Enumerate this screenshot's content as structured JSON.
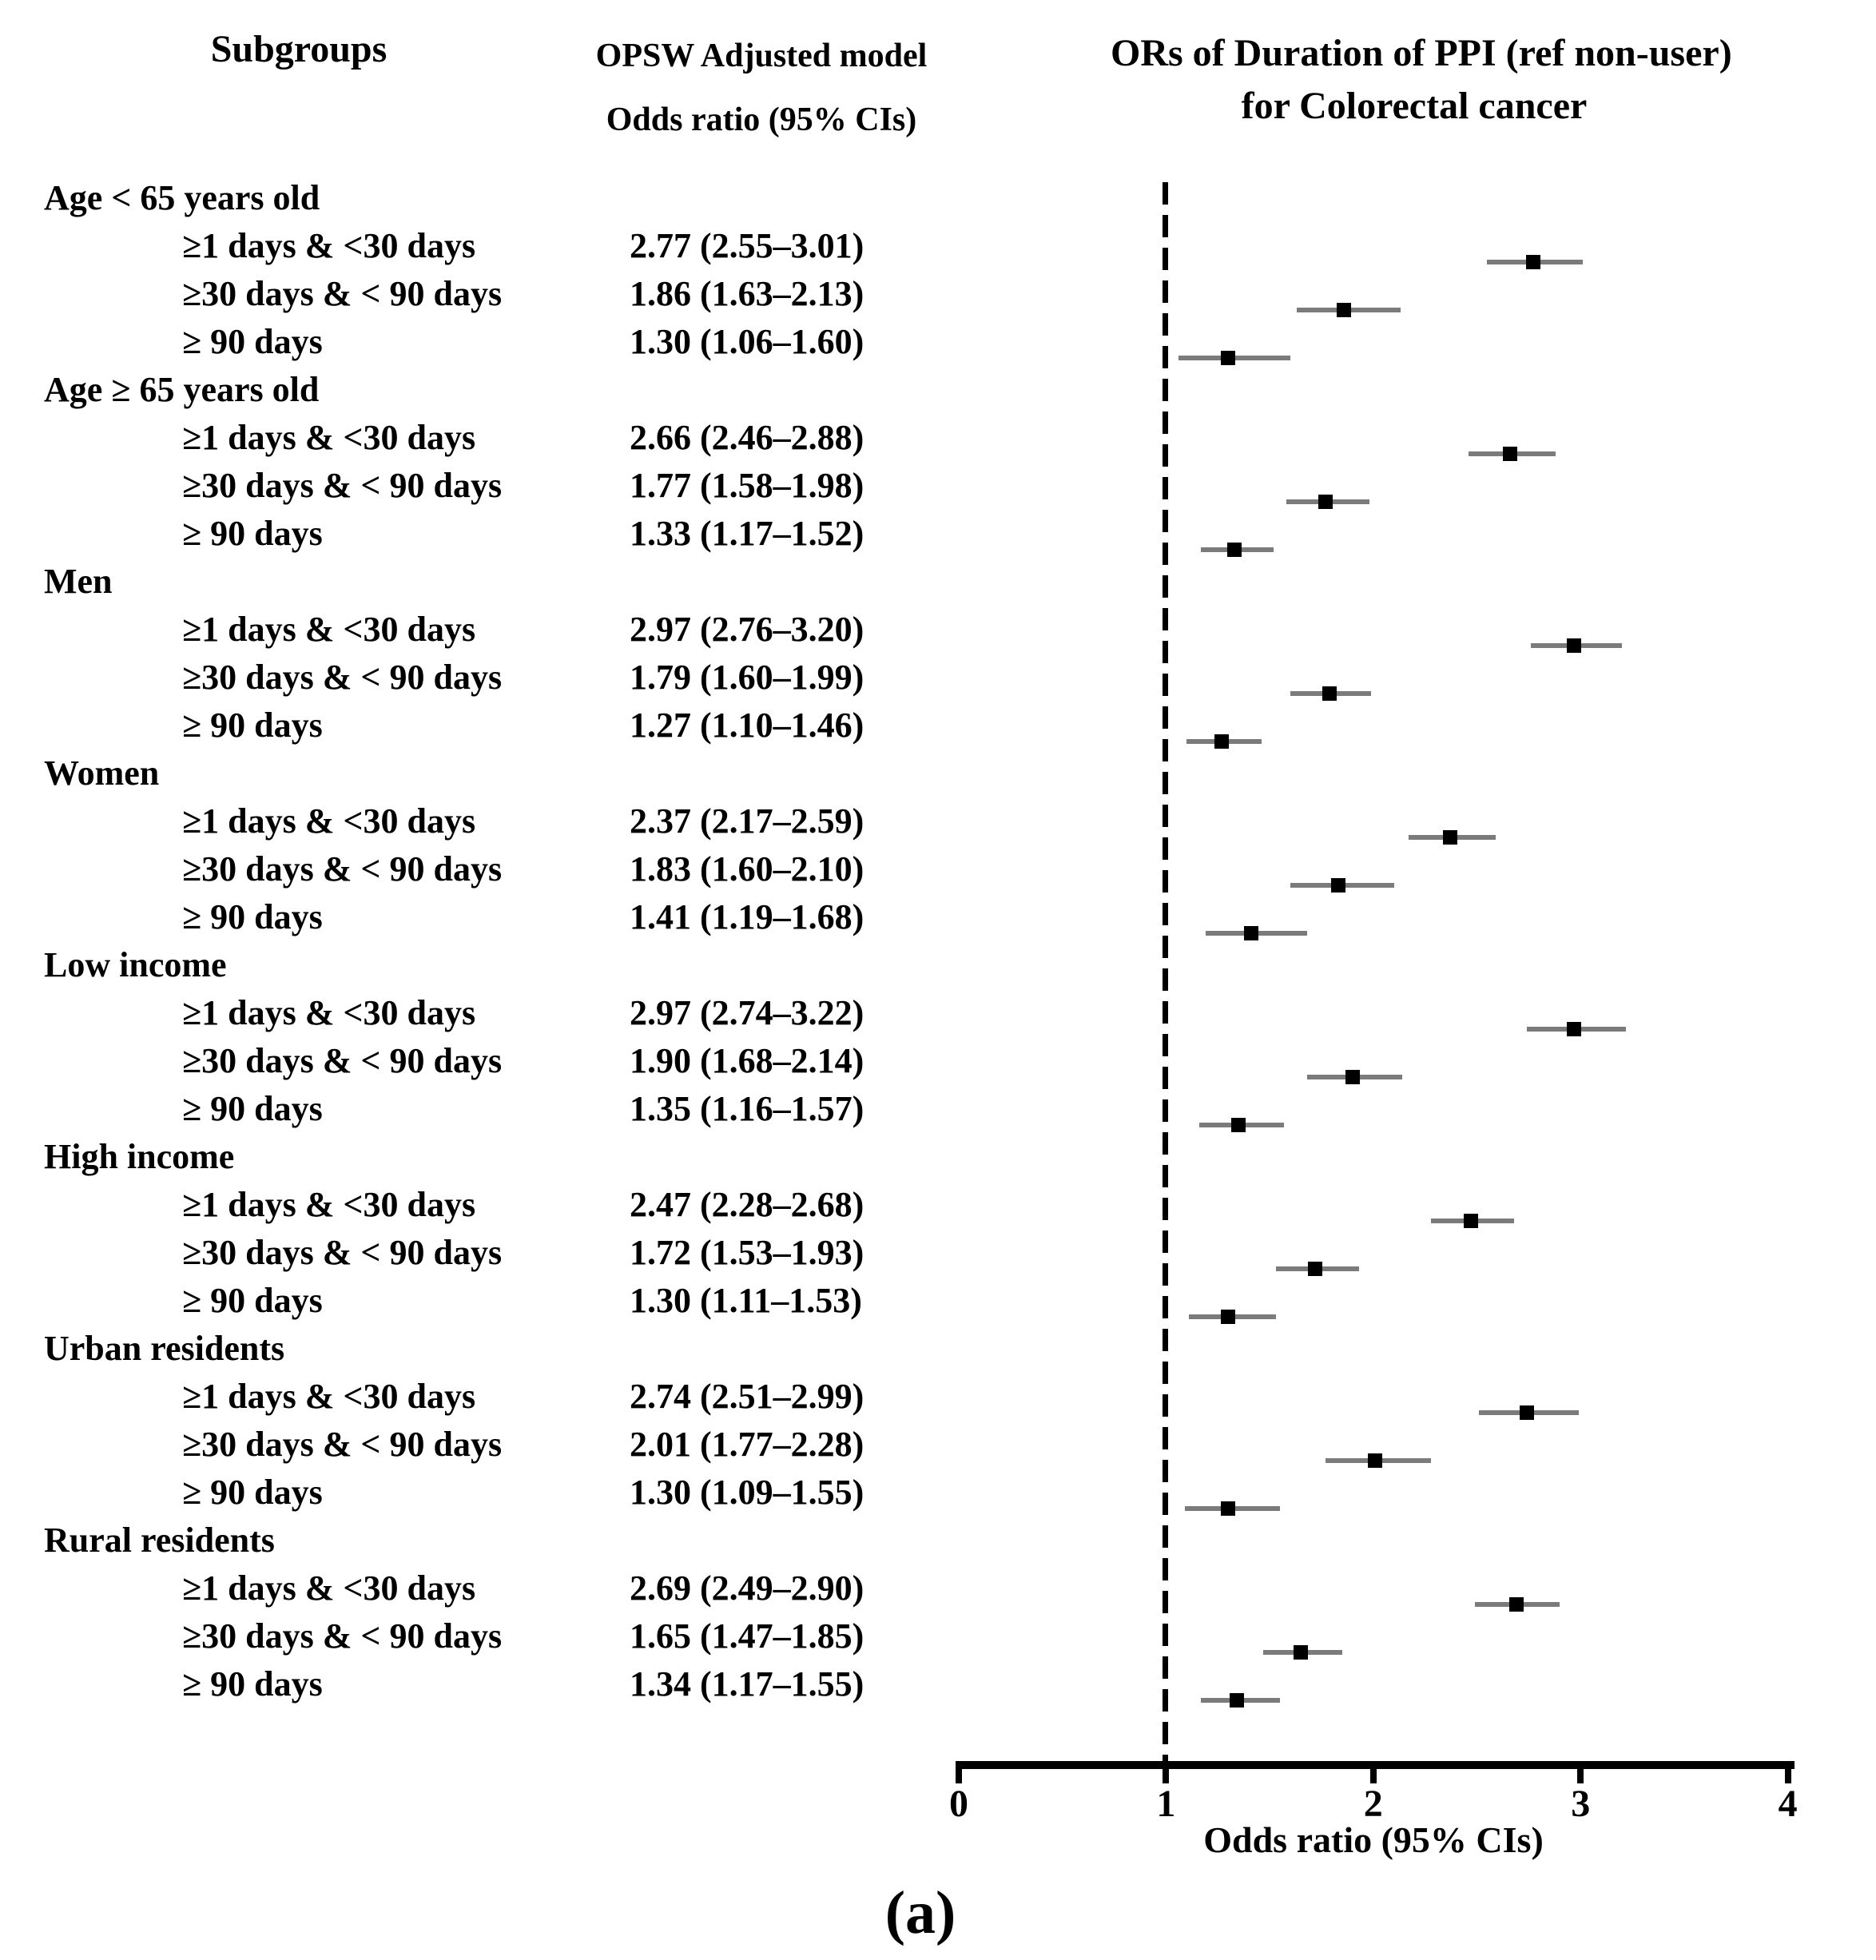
{
  "header": {
    "subgroups_title": "Subgroups",
    "model_title_line1": "OPSW Adjusted model",
    "model_title_line2": "Odds ratio (95% CIs)",
    "plot_title_line1": "ORs of Duration of PPI (ref non-user)",
    "plot_title_line2": "for Colorectal cancer"
  },
  "caption": "(a)",
  "colors": {
    "marker": "#000000",
    "ci_line": "#7b7b7b",
    "axis": "#000000",
    "text": "#000000",
    "background": "#ffffff"
  },
  "chart_data": {
    "type": "scatter",
    "subtype": "forest-plot",
    "title": "ORs of Duration of PPI (ref non-user) for Colorectal cancer",
    "xlabel": "Odds ratio (95% CIs)",
    "xlim": [
      0,
      4
    ],
    "x_ticks": [
      "0",
      "1",
      "2",
      "3",
      "4"
    ],
    "reference_line_x": 1,
    "grid": false,
    "legend_position": "none",
    "groups": [
      {
        "label": "Age < 65 years old",
        "rows": [
          {
            "label": "≥1 days & <30 days",
            "or": 2.77,
            "ci_low": 2.55,
            "ci_high": 3.01,
            "display": "2.77 (2.55–3.01)"
          },
          {
            "label": "≥30 days & < 90 days",
            "or": 1.86,
            "ci_low": 1.63,
            "ci_high": 2.13,
            "display": "1.86 (1.63–2.13)"
          },
          {
            "label": "≥ 90 days",
            "or": 1.3,
            "ci_low": 1.06,
            "ci_high": 1.6,
            "display": "1.30 (1.06–1.60)"
          }
        ]
      },
      {
        "label": "Age ≥ 65 years old",
        "rows": [
          {
            "label": "≥1 days & <30 days",
            "or": 2.66,
            "ci_low": 2.46,
            "ci_high": 2.88,
            "display": "2.66 (2.46–2.88)"
          },
          {
            "label": "≥30 days & < 90 days",
            "or": 1.77,
            "ci_low": 1.58,
            "ci_high": 1.98,
            "display": "1.77 (1.58–1.98)"
          },
          {
            "label": "≥ 90 days",
            "or": 1.33,
            "ci_low": 1.17,
            "ci_high": 1.52,
            "display": "1.33 (1.17–1.52)"
          }
        ]
      },
      {
        "label": "Men",
        "rows": [
          {
            "label": "≥1 days & <30 days",
            "or": 2.97,
            "ci_low": 2.76,
            "ci_high": 3.2,
            "display": "2.97 (2.76–3.20)"
          },
          {
            "label": "≥30 days & < 90 days",
            "or": 1.79,
            "ci_low": 1.6,
            "ci_high": 1.99,
            "display": "1.79 (1.60–1.99)"
          },
          {
            "label": "≥ 90 days",
            "or": 1.27,
            "ci_low": 1.1,
            "ci_high": 1.46,
            "display": "1.27 (1.10–1.46)"
          }
        ]
      },
      {
        "label": "Women",
        "rows": [
          {
            "label": "≥1 days & <30 days",
            "or": 2.37,
            "ci_low": 2.17,
            "ci_high": 2.59,
            "display": "2.37 (2.17–2.59)"
          },
          {
            "label": "≥30 days & < 90 days",
            "or": 1.83,
            "ci_low": 1.6,
            "ci_high": 2.1,
            "display": "1.83 (1.60–2.10)"
          },
          {
            "label": "≥ 90 days",
            "or": 1.41,
            "ci_low": 1.19,
            "ci_high": 1.68,
            "display": "1.41 (1.19–1.68)"
          }
        ]
      },
      {
        "label": "Low income",
        "rows": [
          {
            "label": "≥1 days & <30 days",
            "or": 2.97,
            "ci_low": 2.74,
            "ci_high": 3.22,
            "display": "2.97 (2.74–3.22)"
          },
          {
            "label": "≥30 days & < 90 days",
            "or": 1.9,
            "ci_low": 1.68,
            "ci_high": 2.14,
            "display": "1.90 (1.68–2.14)"
          },
          {
            "label": "≥ 90 days",
            "or": 1.35,
            "ci_low": 1.16,
            "ci_high": 1.57,
            "display": "1.35 (1.16–1.57)"
          }
        ]
      },
      {
        "label": "High income",
        "rows": [
          {
            "label": "≥1 days & <30 days",
            "or": 2.47,
            "ci_low": 2.28,
            "ci_high": 2.68,
            "display": "2.47 (2.28–2.68)"
          },
          {
            "label": "≥30 days & < 90 days",
            "or": 1.72,
            "ci_low": 1.53,
            "ci_high": 1.93,
            "display": "1.72 (1.53–1.93)"
          },
          {
            "label": "≥ 90 days",
            "or": 1.3,
            "ci_low": 1.11,
            "ci_high": 1.53,
            "display": "1.30 (1.11–1.53)"
          }
        ]
      },
      {
        "label": "Urban residents",
        "rows": [
          {
            "label": "≥1 days & <30 days",
            "or": 2.74,
            "ci_low": 2.51,
            "ci_high": 2.99,
            "display": "2.74 (2.51–2.99)"
          },
          {
            "label": "≥30 days & < 90 days",
            "or": 2.01,
            "ci_low": 1.77,
            "ci_high": 2.28,
            "display": "2.01 (1.77–2.28)"
          },
          {
            "label": "≥ 90 days",
            "or": 1.3,
            "ci_low": 1.09,
            "ci_high": 1.55,
            "display": "1.30 (1.09–1.55)"
          }
        ]
      },
      {
        "label": "Rural residents",
        "rows": [
          {
            "label": "≥1 days & <30 days",
            "or": 2.69,
            "ci_low": 2.49,
            "ci_high": 2.9,
            "display": "2.69 (2.49–2.90)"
          },
          {
            "label": "≥30 days & < 90 days",
            "or": 1.65,
            "ci_low": 1.47,
            "ci_high": 1.85,
            "display": "1.65 (1.47–1.85)"
          },
          {
            "label": "≥ 90 days",
            "or": 1.34,
            "ci_low": 1.17,
            "ci_high": 1.55,
            "display": "1.34 (1.17–1.55)"
          }
        ]
      }
    ]
  }
}
